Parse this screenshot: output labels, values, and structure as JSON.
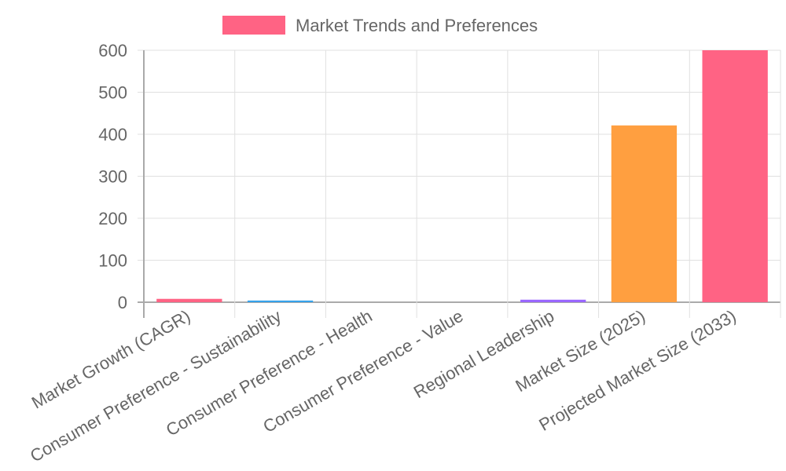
{
  "chart_data": {
    "type": "bar",
    "title": "",
    "legend": {
      "position": "top",
      "entries": [
        "Market Trends and Preferences"
      ],
      "swatch_color": "#ff6384"
    },
    "categories": [
      "Market Growth (CAGR)",
      "Consumer Preference - Sustainability",
      "Consumer Preference - Health",
      "Consumer Preference - Value",
      "Regional Leadership",
      "Market Size (2025)",
      "Projected Market Size (2033)"
    ],
    "series": [
      {
        "name": "Market Trends and Preferences",
        "values": [
          8,
          4,
          0,
          0,
          6,
          421,
          600
        ],
        "colors": [
          "#ff6384",
          "#36a2eb",
          "#ffcd56",
          "#4bc0c0",
          "#9966ff",
          "#ff9f40",
          "#ff6384"
        ]
      }
    ],
    "xlabel": "",
    "ylabel": "",
    "ylim": [
      0,
      600
    ],
    "yticks": [
      0,
      100,
      200,
      300,
      400,
      500,
      600
    ],
    "grid": true
  }
}
